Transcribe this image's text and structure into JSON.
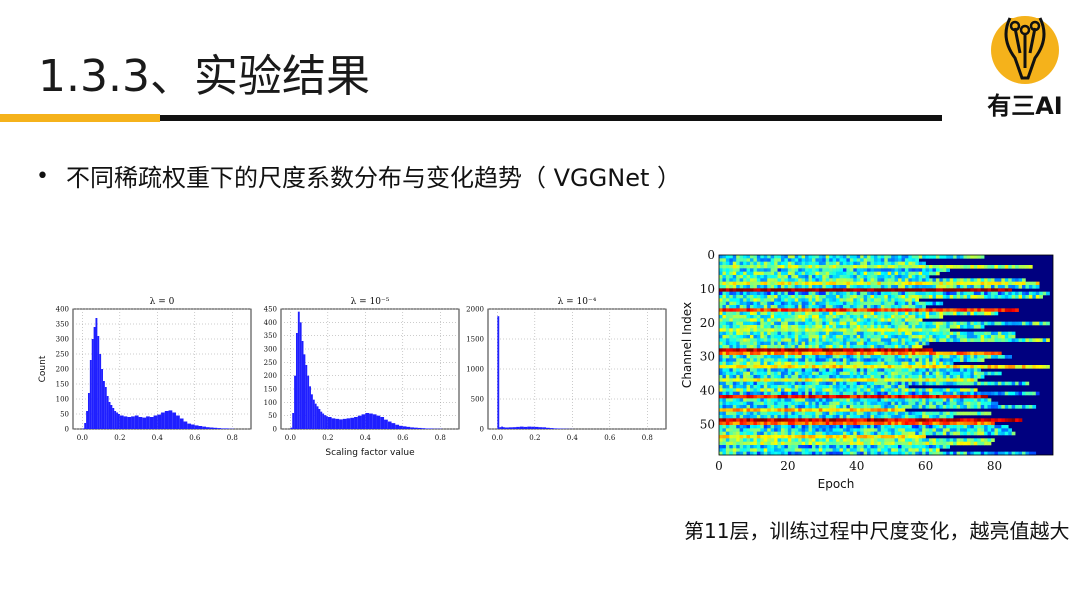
{
  "slide": {
    "title": "1.3.3、实验结果",
    "bullet": "不同稀疏权重下的尺度系数分布与变化趋势（ VGGNet ）",
    "caption": "第11层，训练过程中尺度变化，越亮值越大",
    "logo_text": "有三AI",
    "accent": "#f5b21b"
  },
  "chart_data": [
    {
      "type": "bar",
      "title": "λ = 0",
      "xlabel": "",
      "ylabel": "Count",
      "xlim": [
        -0.05,
        0.9
      ],
      "ylim": [
        0,
        400
      ],
      "xticks": [
        "0.0",
        "0.2",
        "0.4",
        "0.6",
        "0.8"
      ],
      "yticks": [
        "0",
        "50",
        "100",
        "150",
        "200",
        "250",
        "300",
        "350",
        "400"
      ],
      "color": "#1f1fff",
      "bins": [
        0.0,
        0.01,
        0.02,
        0.03,
        0.04,
        0.05,
        0.06,
        0.07,
        0.08,
        0.09,
        0.1,
        0.11,
        0.12,
        0.13,
        0.14,
        0.15,
        0.16,
        0.17,
        0.18,
        0.19,
        0.2,
        0.22,
        0.24,
        0.26,
        0.28,
        0.3,
        0.32,
        0.34,
        0.36,
        0.38,
        0.4,
        0.42,
        0.44,
        0.46,
        0.48,
        0.5,
        0.52,
        0.54,
        0.56,
        0.58,
        0.6,
        0.62,
        0.64,
        0.66,
        0.68,
        0.7,
        0.72,
        0.74,
        0.76,
        0.78,
        0.8
      ],
      "values": [
        2,
        20,
        60,
        120,
        230,
        300,
        340,
        370,
        310,
        250,
        200,
        160,
        140,
        110,
        90,
        80,
        70,
        60,
        55,
        50,
        45,
        42,
        40,
        42,
        45,
        40,
        38,
        42,
        40,
        45,
        48,
        55,
        60,
        62,
        55,
        45,
        35,
        25,
        18,
        15,
        12,
        10,
        8,
        6,
        5,
        4,
        3,
        2,
        2,
        1,
        1
      ]
    },
    {
      "type": "bar",
      "title": "λ = 10⁻⁵",
      "xlabel": "Scaling factor value",
      "ylabel": "",
      "xlim": [
        -0.05,
        0.9
      ],
      "ylim": [
        0,
        450
      ],
      "xticks": [
        "0.0",
        "0.2",
        "0.4",
        "0.6",
        "0.8"
      ],
      "yticks": [
        "0",
        "50",
        "100",
        "150",
        "200",
        "250",
        "300",
        "350",
        "400",
        "450"
      ],
      "color": "#1f1fff",
      "bins": [
        0.0,
        0.01,
        0.02,
        0.03,
        0.04,
        0.05,
        0.06,
        0.07,
        0.08,
        0.09,
        0.1,
        0.11,
        0.12,
        0.13,
        0.14,
        0.15,
        0.16,
        0.17,
        0.18,
        0.19,
        0.2,
        0.22,
        0.24,
        0.26,
        0.28,
        0.3,
        0.32,
        0.34,
        0.36,
        0.38,
        0.4,
        0.42,
        0.44,
        0.46,
        0.48,
        0.5,
        0.52,
        0.54,
        0.56,
        0.58,
        0.6,
        0.62,
        0.64,
        0.66,
        0.68,
        0.7,
        0.72,
        0.74,
        0.76,
        0.78,
        0.8
      ],
      "values": [
        5,
        60,
        200,
        360,
        440,
        400,
        330,
        280,
        240,
        200,
        160,
        130,
        110,
        95,
        85,
        75,
        65,
        58,
        52,
        48,
        45,
        40,
        38,
        36,
        38,
        40,
        42,
        45,
        50,
        55,
        60,
        58,
        55,
        50,
        45,
        35,
        28,
        22,
        16,
        12,
        10,
        8,
        6,
        5,
        4,
        3,
        2,
        2,
        1,
        1,
        1
      ]
    },
    {
      "type": "bar",
      "title": "λ = 10⁻⁴",
      "xlabel": "",
      "ylabel": "",
      "xlim": [
        -0.05,
        0.9
      ],
      "ylim": [
        0,
        2000
      ],
      "xticks": [
        "0.0",
        "0.2",
        "0.4",
        "0.6",
        "0.8"
      ],
      "yticks": [
        "0",
        "500",
        "1000",
        "1500",
        "2000"
      ],
      "color": "#1f1fff",
      "bins": [
        0.0,
        0.01,
        0.02,
        0.03,
        0.04,
        0.06,
        0.08,
        0.1,
        0.12,
        0.14,
        0.16,
        0.18,
        0.2,
        0.22,
        0.24,
        0.26,
        0.28,
        0.3,
        0.32,
        0.34,
        0.36,
        0.38,
        0.4
      ],
      "values": [
        1880,
        30,
        40,
        30,
        25,
        28,
        30,
        35,
        40,
        35,
        40,
        38,
        35,
        30,
        28,
        20,
        15,
        10,
        8,
        6,
        4,
        2,
        1
      ]
    },
    {
      "type": "heatmap",
      "title": "",
      "xlabel": "Epoch",
      "ylabel": "Channel Index",
      "xlim": [
        0,
        97
      ],
      "ylim": [
        59,
        0
      ],
      "xticks": [
        "0",
        "20",
        "40",
        "60",
        "80"
      ],
      "yticks": [
        "0",
        "10",
        "20",
        "30",
        "40",
        "50"
      ],
      "n_rows": 60,
      "n_cols": 97,
      "colormap": "jet"
    }
  ]
}
